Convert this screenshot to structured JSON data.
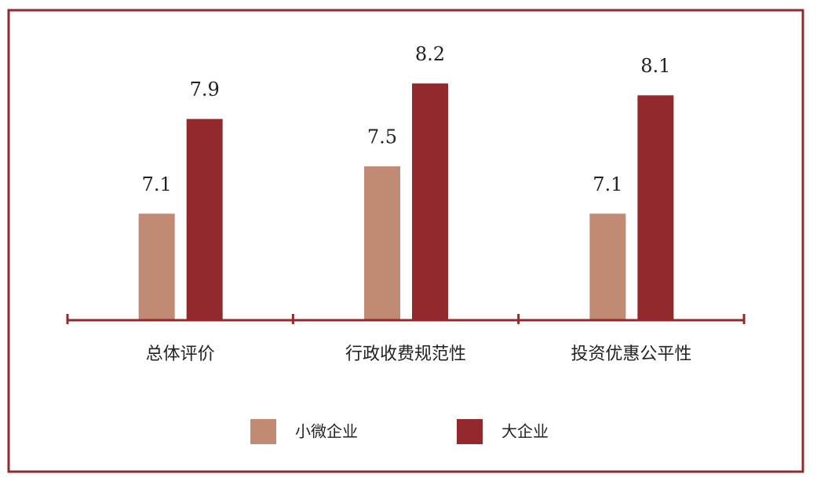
{
  "chart_data": {
    "type": "bar",
    "categories": [
      "总体评价",
      "行政收费规范性",
      "投资优惠公平性"
    ],
    "series": [
      {
        "name": "小微企业",
        "color": "#c08a74",
        "values": [
          7.1,
          7.5,
          7.1
        ]
      },
      {
        "name": "大企业",
        "color": "#922a2d",
        "values": [
          7.9,
          8.2,
          8.1
        ]
      }
    ],
    "ylim": [
      6.2,
      8.6
    ]
  }
}
